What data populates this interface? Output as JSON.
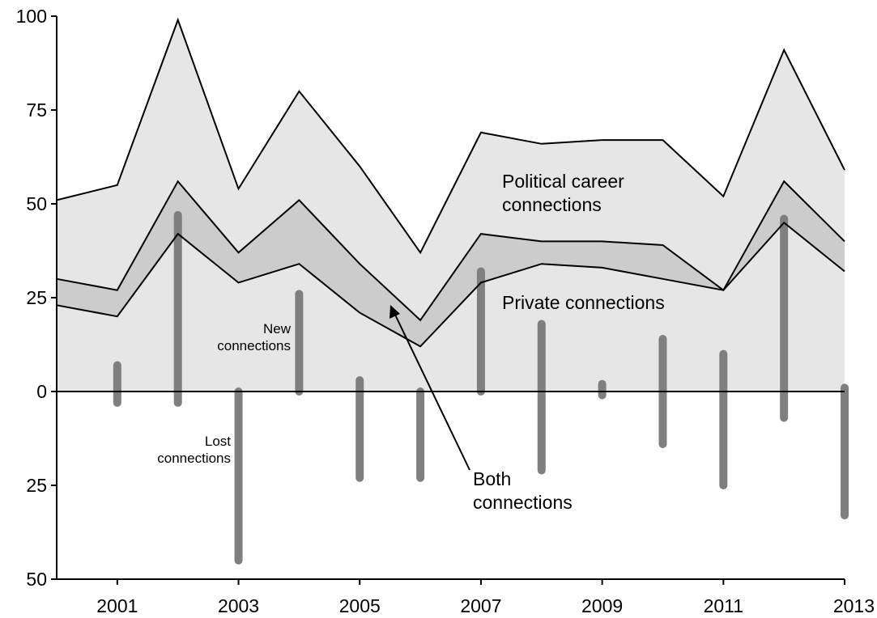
{
  "chart_data": {
    "type": "area",
    "x": [
      2000,
      2001,
      2002,
      2003,
      2004,
      2005,
      2006,
      2007,
      2008,
      2009,
      2010,
      2011,
      2012,
      2013
    ],
    "series": [
      {
        "name": "Political career connections",
        "values": [
          51,
          55,
          99,
          54,
          80,
          60,
          37,
          69,
          66,
          67,
          67,
          52,
          91,
          59
        ]
      },
      {
        "name": "Private connections",
        "values": [
          30,
          27,
          56,
          37,
          51,
          34,
          19,
          42,
          40,
          40,
          39,
          27,
          56,
          40
        ]
      },
      {
        "name": "Both connections",
        "values": [
          23,
          20,
          42,
          29,
          34,
          21,
          12,
          29,
          34,
          33,
          30,
          27,
          45,
          32
        ]
      }
    ],
    "connection_bars": [
      {
        "x": 2001,
        "new": 7,
        "lost": 3
      },
      {
        "x": 2002,
        "new": 47,
        "lost": 3
      },
      {
        "x": 2003,
        "new": 0,
        "lost": 45
      },
      {
        "x": 2004,
        "new": 26,
        "lost": 0
      },
      {
        "x": 2005,
        "new": 3,
        "lost": 23
      },
      {
        "x": 2006,
        "new": 0,
        "lost": 23
      },
      {
        "x": 2007,
        "new": 32,
        "lost": 0
      },
      {
        "x": 2008,
        "new": 18,
        "lost": 21
      },
      {
        "x": 2009,
        "new": 2,
        "lost": 1
      },
      {
        "x": 2010,
        "new": 14,
        "lost": 14
      },
      {
        "x": 2011,
        "new": 10,
        "lost": 25
      },
      {
        "x": 2012,
        "new": 46,
        "lost": 7
      },
      {
        "x": 2013,
        "new": 1,
        "lost": 33
      }
    ],
    "xlim": [
      2000,
      2013
    ],
    "ylim": [
      -50,
      100
    ],
    "x_ticks": [
      2001,
      2003,
      2005,
      2007,
      2009,
      2011,
      2013
    ],
    "x_tick_labels": [
      "2001",
      "2003",
      "2005",
      "2007",
      "2009",
      "2011",
      "2013"
    ],
    "y_ticks": [
      -50,
      -25,
      0,
      25,
      50,
      75,
      100
    ],
    "y_tick_labels": [
      "50",
      "25",
      "0",
      "25",
      "50",
      "75",
      "100"
    ],
    "annotations": {
      "political_line1": "Political career",
      "political_line2": "connections",
      "private": "Private connections",
      "both_line1": "Both",
      "both_line2": "connections",
      "new_line1": "New",
      "new_line2": "connections",
      "lost_line1": "Lost",
      "lost_line2": "connections"
    },
    "grid": false,
    "colors": {
      "political_fill": "#e6e6e6",
      "private_fill": "#cccccc",
      "bars": "#7f7f7f",
      "lines": "#000000"
    }
  }
}
